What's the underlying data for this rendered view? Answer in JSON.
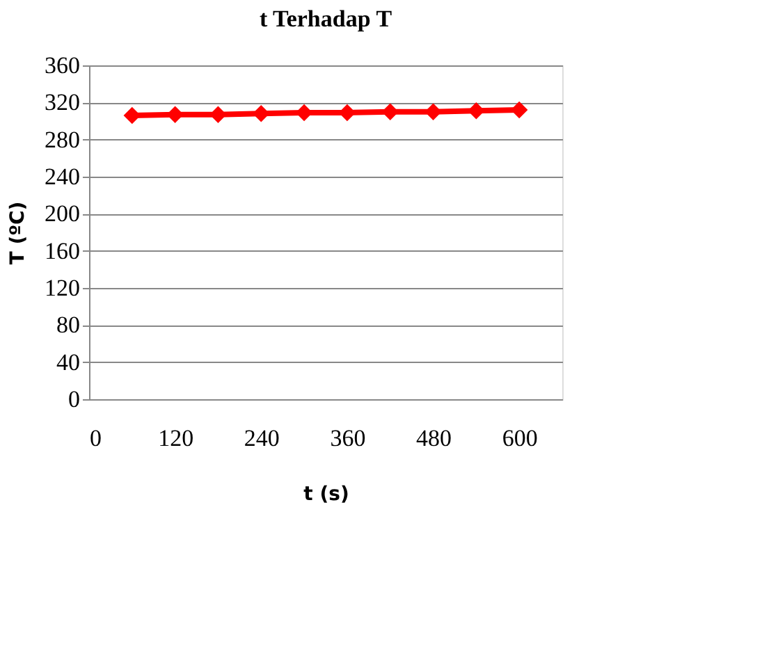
{
  "chart_data": {
    "type": "line",
    "title": "t Terhadap T",
    "xlabel": "t (s)",
    "ylabel": "T (ºC)",
    "x": [
      60,
      120,
      180,
      240,
      300,
      360,
      420,
      480,
      540,
      600
    ],
    "series": [
      {
        "color": "#ff0000",
        "values": [
          306,
          307,
          307,
          308,
          309,
          309,
          310,
          310,
          311,
          312
        ]
      }
    ],
    "xlim": [
      0,
      660
    ],
    "xticks": [
      0,
      120,
      240,
      360,
      480,
      600
    ],
    "ylim": [
      0,
      360
    ],
    "yticks": [
      0,
      40,
      80,
      120,
      160,
      200,
      240,
      280,
      320,
      360
    ],
    "grid": "y",
    "legend": false,
    "marker": "diamond",
    "line_style": "solid"
  }
}
